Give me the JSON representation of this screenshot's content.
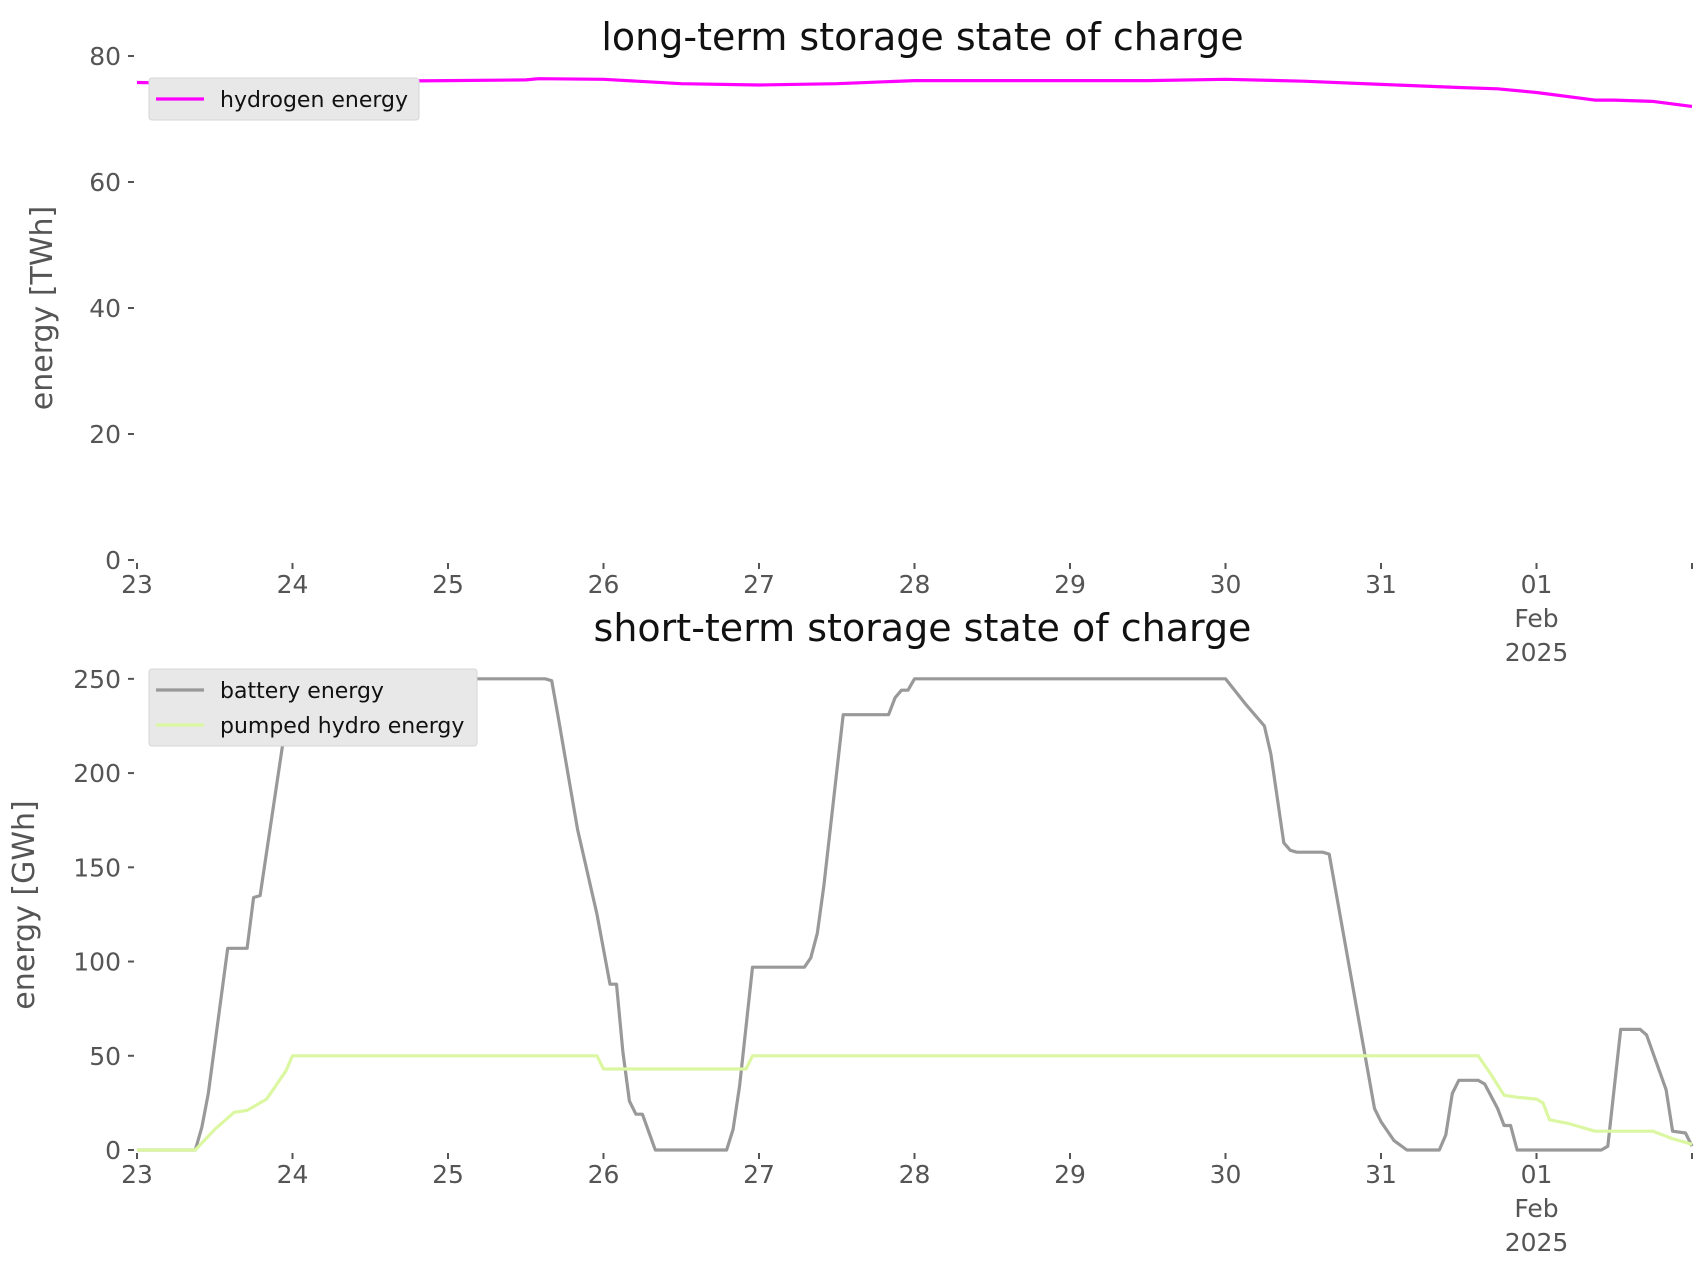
{
  "chart_data": [
    {
      "type": "line",
      "title": "long-term storage state of charge",
      "xlabel": "",
      "ylabel": "energy [TWh]",
      "xlim": [
        "2025-01-23T00:00",
        "2025-02-02T00:00"
      ],
      "ylim": [
        0,
        80
      ],
      "yticks": [
        0,
        20,
        40,
        60,
        80
      ],
      "xtick_labels": [
        {
          "x": "2025-01-23",
          "lines": [
            "23"
          ]
        },
        {
          "x": "2025-01-24",
          "lines": [
            "24"
          ]
        },
        {
          "x": "2025-01-25",
          "lines": [
            "25"
          ]
        },
        {
          "x": "2025-01-26",
          "lines": [
            "26"
          ]
        },
        {
          "x": "2025-01-27",
          "lines": [
            "27"
          ]
        },
        {
          "x": "2025-01-28",
          "lines": [
            "28"
          ]
        },
        {
          "x": "2025-01-29",
          "lines": [
            "29"
          ]
        },
        {
          "x": "2025-01-30",
          "lines": [
            "30"
          ]
        },
        {
          "x": "2025-01-31",
          "lines": [
            "31"
          ]
        },
        {
          "x": "2025-02-01",
          "lines": [
            "01",
            "Feb",
            "2025"
          ]
        },
        {
          "x": "2025-02-02",
          "lines": []
        }
      ],
      "grid": false,
      "legend_position": "upper-left",
      "series": [
        {
          "name": "hydrogen energy",
          "color": "#ff00ff",
          "points": [
            [
              "2025-01-23T00:00",
              75.8
            ],
            [
              "2025-01-23T12:00",
              75.6
            ],
            [
              "2025-01-24T00:00",
              75.8
            ],
            [
              "2025-01-24T12:00",
              76.0
            ],
            [
              "2025-01-25T00:00",
              76.1
            ],
            [
              "2025-01-25T12:00",
              76.2
            ],
            [
              "2025-01-25T14:00",
              76.4
            ],
            [
              "2025-01-26T00:00",
              76.3
            ],
            [
              "2025-01-26T12:00",
              75.6
            ],
            [
              "2025-01-27T00:00",
              75.4
            ],
            [
              "2025-01-27T12:00",
              75.6
            ],
            [
              "2025-01-28T00:00",
              76.1
            ],
            [
              "2025-01-28T12:00",
              76.1
            ],
            [
              "2025-01-29T00:00",
              76.1
            ],
            [
              "2025-01-29T12:00",
              76.1
            ],
            [
              "2025-01-30T00:00",
              76.3
            ],
            [
              "2025-01-30T12:00",
              76.0
            ],
            [
              "2025-01-31T00:00",
              75.5
            ],
            [
              "2025-01-31T12:00",
              75.0
            ],
            [
              "2025-01-31T18:00",
              74.8
            ],
            [
              "2025-02-01T00:00",
              74.2
            ],
            [
              "2025-02-01T09:00",
              73.0
            ],
            [
              "2025-02-01T12:00",
              73.0
            ],
            [
              "2025-02-01T18:00",
              72.8
            ],
            [
              "2025-02-02T00:00",
              72.0
            ]
          ]
        }
      ]
    },
    {
      "type": "line",
      "title": "short-term storage state of charge",
      "xlabel": "",
      "ylabel": "energy [GWh]",
      "xlim": [
        "2025-01-23T00:00",
        "2025-02-02T00:00"
      ],
      "ylim": [
        0,
        260
      ],
      "yticks": [
        0,
        50,
        100,
        150,
        200,
        250
      ],
      "xtick_labels": [
        {
          "x": "2025-01-23",
          "lines": [
            "23"
          ]
        },
        {
          "x": "2025-01-24",
          "lines": [
            "24"
          ]
        },
        {
          "x": "2025-01-25",
          "lines": [
            "25"
          ]
        },
        {
          "x": "2025-01-26",
          "lines": [
            "26"
          ]
        },
        {
          "x": "2025-01-27",
          "lines": [
            "27"
          ]
        },
        {
          "x": "2025-01-28",
          "lines": [
            "28"
          ]
        },
        {
          "x": "2025-01-29",
          "lines": [
            "29"
          ]
        },
        {
          "x": "2025-01-30",
          "lines": [
            "30"
          ]
        },
        {
          "x": "2025-01-31",
          "lines": [
            "31"
          ]
        },
        {
          "x": "2025-02-01",
          "lines": [
            "01",
            "Feb",
            "2025"
          ]
        },
        {
          "x": "2025-02-02",
          "lines": []
        }
      ],
      "grid": false,
      "legend_position": "upper-left",
      "series": [
        {
          "name": "battery energy",
          "color": "#999999",
          "points": [
            [
              "2025-01-23T00:00",
              0
            ],
            [
              "2025-01-23T09:00",
              0
            ],
            [
              "2025-01-23T10:00",
              12
            ],
            [
              "2025-01-23T11:00",
              30
            ],
            [
              "2025-01-23T14:00",
              107
            ],
            [
              "2025-01-23T17:00",
              107
            ],
            [
              "2025-01-23T18:00",
              134
            ],
            [
              "2025-01-23T19:00",
              135
            ],
            [
              "2025-01-24T00:00",
              250
            ],
            [
              "2025-01-25T15:00",
              250
            ],
            [
              "2025-01-25T16:00",
              249
            ],
            [
              "2025-01-25T17:00",
              230
            ],
            [
              "2025-01-25T20:00",
              170
            ],
            [
              "2025-01-25T23:00",
              125
            ],
            [
              "2025-01-26T01:00",
              88
            ],
            [
              "2025-01-26T02:00",
              88
            ],
            [
              "2025-01-26T03:00",
              52
            ],
            [
              "2025-01-26T04:00",
              26
            ],
            [
              "2025-01-26T05:00",
              19
            ],
            [
              "2025-01-26T06:00",
              19
            ],
            [
              "2025-01-26T08:00",
              0
            ],
            [
              "2025-01-26T19:00",
              0
            ],
            [
              "2025-01-26T20:00",
              11
            ],
            [
              "2025-01-26T21:00",
              34
            ],
            [
              "2025-01-26T23:00",
              97
            ],
            [
              "2025-01-27T07:00",
              97
            ],
            [
              "2025-01-27T08:00",
              102
            ],
            [
              "2025-01-27T09:00",
              115
            ],
            [
              "2025-01-27T10:00",
              140
            ],
            [
              "2025-01-27T13:00",
              231
            ],
            [
              "2025-01-27T20:00",
              231
            ],
            [
              "2025-01-27T21:00",
              240
            ],
            [
              "2025-01-27T22:00",
              244
            ],
            [
              "2025-01-27T23:00",
              244
            ],
            [
              "2025-01-28T00:00",
              250
            ],
            [
              "2025-01-30T00:00",
              250
            ],
            [
              "2025-01-30T03:00",
              237
            ],
            [
              "2025-01-30T06:00",
              225
            ],
            [
              "2025-01-30T07:00",
              210
            ],
            [
              "2025-01-30T09:00",
              163
            ],
            [
              "2025-01-30T10:00",
              159
            ],
            [
              "2025-01-30T11:00",
              158
            ],
            [
              "2025-01-30T15:00",
              158
            ],
            [
              "2025-01-30T16:00",
              157
            ],
            [
              "2025-01-30T23:00",
              22
            ],
            [
              "2025-01-31T00:00",
              15
            ],
            [
              "2025-01-31T02:00",
              5
            ],
            [
              "2025-01-31T04:00",
              0
            ],
            [
              "2025-01-31T09:00",
              0
            ],
            [
              "2025-01-31T10:00",
              8
            ],
            [
              "2025-01-31T11:00",
              30
            ],
            [
              "2025-01-31T12:00",
              37
            ],
            [
              "2025-01-31T15:00",
              37
            ],
            [
              "2025-01-31T16:00",
              35
            ],
            [
              "2025-01-31T18:00",
              22
            ],
            [
              "2025-01-31T19:00",
              13
            ],
            [
              "2025-01-31T20:00",
              13
            ],
            [
              "2025-01-31T21:00",
              0
            ],
            [
              "2025-02-01T10:00",
              0
            ],
            [
              "2025-02-01T11:00",
              2
            ],
            [
              "2025-02-01T13:00",
              64
            ],
            [
              "2025-02-01T16:00",
              64
            ],
            [
              "2025-02-01T17:00",
              61
            ],
            [
              "2025-02-01T20:00",
              32
            ],
            [
              "2025-02-01T21:00",
              10
            ],
            [
              "2025-02-01T23:00",
              9
            ],
            [
              "2025-02-02T00:00",
              2
            ]
          ]
        },
        {
          "name": "pumped hydro energy",
          "color": "#dcf7a1",
          "points": [
            [
              "2025-01-23T00:00",
              0
            ],
            [
              "2025-01-23T09:00",
              0
            ],
            [
              "2025-01-23T12:00",
              11
            ],
            [
              "2025-01-23T15:00",
              20
            ],
            [
              "2025-01-23T17:00",
              21
            ],
            [
              "2025-01-23T19:00",
              25
            ],
            [
              "2025-01-23T20:00",
              27
            ],
            [
              "2025-01-23T21:00",
              32
            ],
            [
              "2025-01-23T23:00",
              42
            ],
            [
              "2025-01-24T00:00",
              50
            ],
            [
              "2025-01-25T23:00",
              50
            ],
            [
              "2025-01-26T00:00",
              43
            ],
            [
              "2025-01-26T22:00",
              43
            ],
            [
              "2025-01-26T23:00",
              50
            ],
            [
              "2025-01-31T15:00",
              50
            ],
            [
              "2025-01-31T17:00",
              40
            ],
            [
              "2025-01-31T19:00",
              29
            ],
            [
              "2025-01-31T21:00",
              28
            ],
            [
              "2025-02-01T00:00",
              27
            ],
            [
              "2025-02-01T01:00",
              25
            ],
            [
              "2025-02-01T02:00",
              16
            ],
            [
              "2025-02-01T05:00",
              14
            ],
            [
              "2025-02-01T07:00",
              12
            ],
            [
              "2025-02-01T09:00",
              10
            ],
            [
              "2025-02-01T12:00",
              10
            ],
            [
              "2025-02-01T18:00",
              10
            ],
            [
              "2025-02-01T21:00",
              6
            ],
            [
              "2025-02-02T00:00",
              3
            ]
          ]
        }
      ]
    }
  ]
}
